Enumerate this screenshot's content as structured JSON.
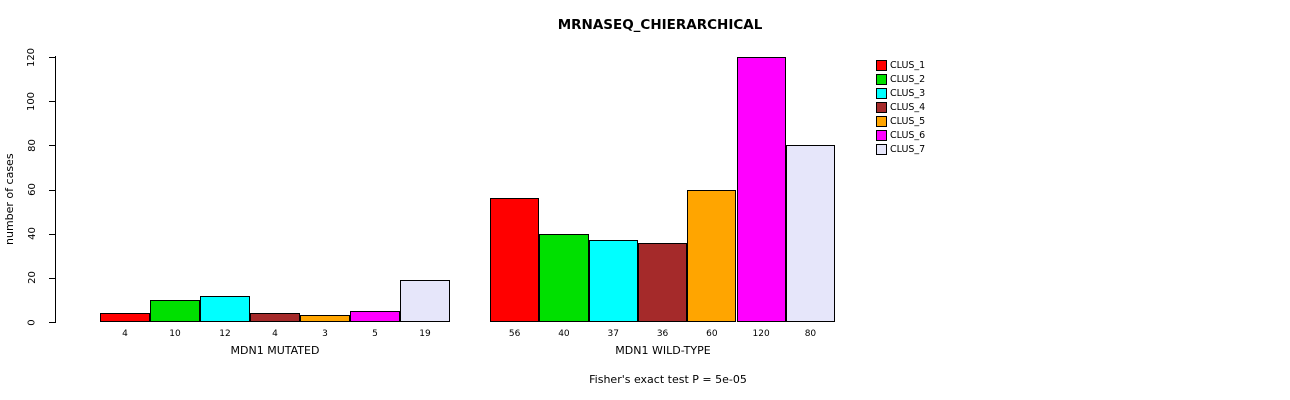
{
  "title": "MRNASEQ_CHIERARCHICAL",
  "chart_data": {
    "type": "bar",
    "title": "MRNASEQ_CHIERARCHICAL",
    "ylabel": "number of cases",
    "xlabel": "",
    "ylim": [
      0,
      120
    ],
    "yticks": [
      0,
      20,
      40,
      60,
      80,
      100,
      120
    ],
    "grid": false,
    "legend_position": "right",
    "series": [
      {
        "name": "CLUS_1",
        "color": "#ff0000"
      },
      {
        "name": "CLUS_2",
        "color": "#00e000"
      },
      {
        "name": "CLUS_3",
        "color": "#00ffff"
      },
      {
        "name": "CLUS_4",
        "color": "#a52a2a"
      },
      {
        "name": "CLUS_5",
        "color": "#ffa500"
      },
      {
        "name": "CLUS_6",
        "color": "#ff00ff"
      },
      {
        "name": "CLUS_7",
        "color": "#e6e6fa"
      }
    ],
    "groups": [
      {
        "label": "MDN1 MUTATED",
        "values": [
          4,
          10,
          12,
          4,
          3,
          5,
          19
        ]
      },
      {
        "label": "MDN1 WILD-TYPE",
        "values": [
          56,
          40,
          37,
          36,
          60,
          120,
          80
        ]
      }
    ],
    "annotation": "Fisher's exact test P = 5e-05"
  }
}
